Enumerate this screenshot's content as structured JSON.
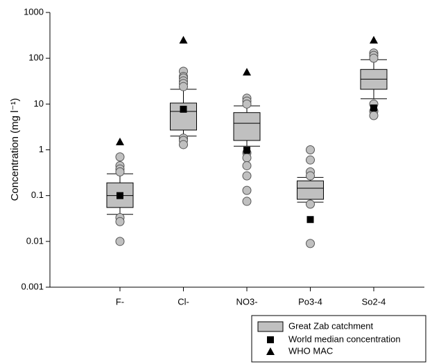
{
  "chart_data": {
    "type": "box",
    "ylabel": "Concentration (mg l⁻¹)",
    "categories": [
      "F-",
      "Cl-",
      "NO3-",
      "Po3-4",
      "So2-4"
    ],
    "ylim": [
      0.001,
      1000
    ],
    "yticks": [
      0.001,
      0.01,
      0.1,
      1,
      10,
      100,
      1000
    ],
    "log_y": true,
    "boxes": {
      "name": "Great Zab catchment",
      "color": "#c0c0c0",
      "q1": [
        0.055,
        2.7,
        1.6,
        0.083,
        21
      ],
      "median": [
        0.1,
        6.9,
        3.8,
        0.145,
        35
      ],
      "q3": [
        0.19,
        10.5,
        6.5,
        0.21,
        57
      ],
      "whisker_low": [
        0.039,
        2.0,
        1.2,
        0.072,
        13
      ],
      "whisker_high": [
        0.3,
        21,
        9.1,
        0.25,
        93
      ],
      "outliers": [
        [
          0.7,
          0.45,
          0.38,
          0.33,
          0.033,
          0.027,
          0.01
        ],
        [
          52,
          40,
          37,
          32,
          28,
          24,
          1.8,
          1.6,
          1.3
        ],
        [
          13.4,
          11.6,
          10,
          0.86,
          0.67,
          0.45,
          0.27,
          0.13,
          0.075
        ],
        [
          1.0,
          0.6,
          0.33,
          0.27,
          0.065,
          0.009
        ],
        [
          130,
          115,
          100,
          10,
          7,
          5.6
        ]
      ]
    },
    "series": [
      {
        "name": "World median concentration",
        "marker": "square",
        "color": "#000000",
        "values": [
          0.1,
          7.7,
          0.98,
          0.03,
          8.2
        ]
      },
      {
        "name": "WHO MAC",
        "marker": "triangle",
        "color": "#000000",
        "values": [
          1.5,
          250,
          50,
          null,
          250
        ]
      }
    ]
  }
}
